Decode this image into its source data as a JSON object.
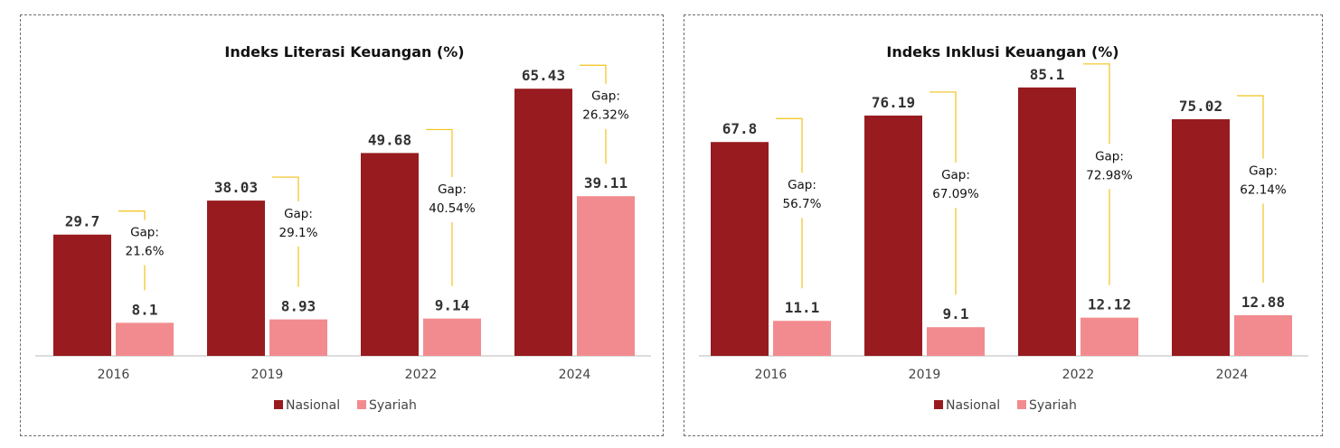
{
  "colors": {
    "nasional": "#971b1f",
    "syariah": "#f28b8f",
    "gap_line": "#f3c21b",
    "axis": "#d0d0d0"
  },
  "legend": {
    "nasional": "Nasional",
    "syariah": "Syariah"
  },
  "gap_label": "Gap:",
  "chart_data": [
    {
      "type": "bar",
      "title": "Indeks Literasi Keuangan (%)",
      "categories": [
        "2016",
        "2019",
        "2022",
        "2024"
      ],
      "series": [
        {
          "name": "Nasional",
          "values": [
            29.7,
            38.03,
            49.68,
            65.43
          ],
          "labels": [
            "29.7",
            "38.03",
            "49.68",
            "65.43"
          ]
        },
        {
          "name": "Syariah",
          "values": [
            8.1,
            8.93,
            9.14,
            39.11
          ],
          "labels": [
            "8.1",
            "8.93",
            "9.14",
            "39.11"
          ]
        }
      ],
      "gaps": [
        "21.6%",
        "29.1%",
        "40.54%",
        "26.32%"
      ],
      "ylim": [
        0,
        73
      ],
      "grid": false,
      "legend_position": "bottom"
    },
    {
      "type": "bar",
      "title": "Indeks Inklusi Keuangan (%)",
      "categories": [
        "2016",
        "2019",
        "2022",
        "2024"
      ],
      "series": [
        {
          "name": "Nasional",
          "values": [
            67.8,
            76.19,
            85.1,
            75.02
          ],
          "labels": [
            "67.8",
            "76.19",
            "85.1",
            "75.02"
          ]
        },
        {
          "name": "Syariah",
          "values": [
            11.1,
            9.1,
            12.12,
            12.88
          ],
          "labels": [
            "11.1",
            "9.1",
            "12.12",
            "12.88"
          ]
        }
      ],
      "gaps": [
        "56.7%",
        "67.09%",
        "72.98%",
        "62.14%"
      ],
      "ylim": [
        0,
        94.5
      ],
      "grid": false,
      "legend_position": "bottom"
    }
  ]
}
